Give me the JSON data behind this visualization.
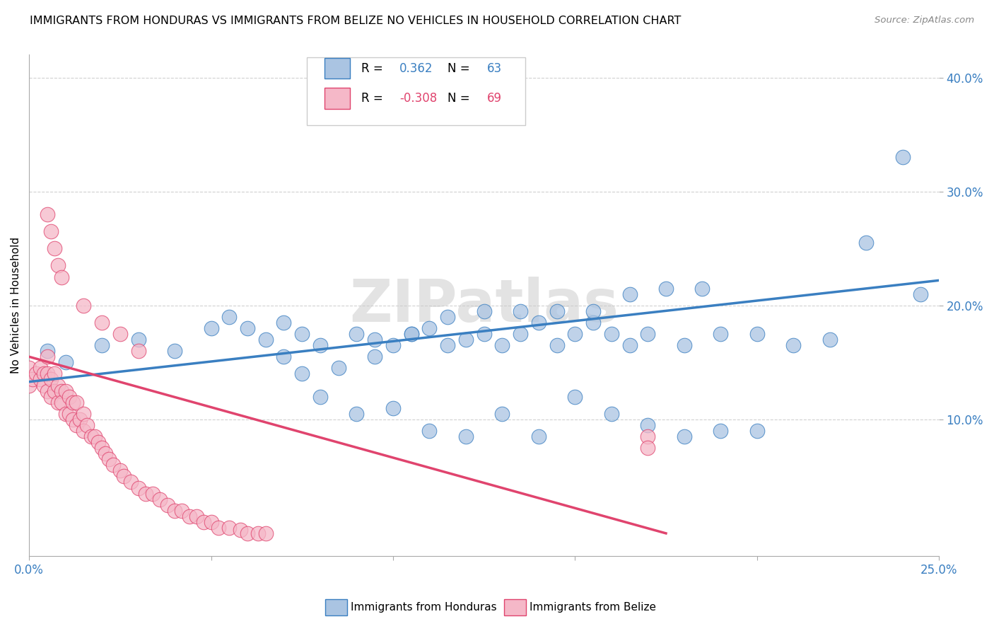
{
  "title": "IMMIGRANTS FROM HONDURAS VS IMMIGRANTS FROM BELIZE NO VEHICLES IN HOUSEHOLD CORRELATION CHART",
  "source": "Source: ZipAtlas.com",
  "ylabel": "No Vehicles in Household",
  "xlim": [
    0.0,
    0.25
  ],
  "ylim": [
    -0.02,
    0.42
  ],
  "ytick_vals": [
    0.1,
    0.2,
    0.3,
    0.4
  ],
  "ytick_labels": [
    "10.0%",
    "20.0%",
    "30.0%",
    "40.0%"
  ],
  "xtick_vals": [
    0.0,
    0.05,
    0.1,
    0.15,
    0.2,
    0.25
  ],
  "xtick_labels": [
    "0.0%",
    "",
    "",
    "",
    "",
    "25.0%"
  ],
  "legend_r_blue": "0.362",
  "legend_n_blue": "63",
  "legend_r_pink": "-0.308",
  "legend_n_pink": "69",
  "blue_color": "#aac4e2",
  "pink_color": "#f5b8c8",
  "blue_line_color": "#3a7fc1",
  "pink_line_color": "#e0446e",
  "watermark": "ZIPatlas",
  "blue_trend_start_y": 0.133,
  "blue_trend_end_y": 0.222,
  "pink_trend_start_y": 0.155,
  "pink_trend_end_x": 0.175,
  "blue_x": [
    0.005,
    0.01,
    0.02,
    0.03,
    0.04,
    0.05,
    0.055,
    0.06,
    0.065,
    0.07,
    0.075,
    0.08,
    0.09,
    0.095,
    0.1,
    0.105,
    0.11,
    0.115,
    0.12,
    0.125,
    0.13,
    0.135,
    0.14,
    0.145,
    0.15,
    0.155,
    0.16,
    0.165,
    0.17,
    0.18,
    0.19,
    0.2,
    0.21,
    0.22,
    0.23,
    0.24,
    0.245,
    0.08,
    0.09,
    0.1,
    0.11,
    0.12,
    0.13,
    0.14,
    0.15,
    0.16,
    0.17,
    0.18,
    0.19,
    0.2,
    0.07,
    0.075,
    0.085,
    0.095,
    0.105,
    0.115,
    0.125,
    0.135,
    0.145,
    0.155,
    0.165,
    0.175,
    0.185
  ],
  "blue_y": [
    0.16,
    0.15,
    0.165,
    0.17,
    0.16,
    0.18,
    0.19,
    0.18,
    0.17,
    0.185,
    0.175,
    0.165,
    0.175,
    0.17,
    0.165,
    0.175,
    0.18,
    0.165,
    0.17,
    0.175,
    0.165,
    0.175,
    0.185,
    0.165,
    0.175,
    0.185,
    0.175,
    0.165,
    0.175,
    0.165,
    0.175,
    0.175,
    0.165,
    0.17,
    0.255,
    0.33,
    0.21,
    0.12,
    0.105,
    0.11,
    0.09,
    0.085,
    0.105,
    0.085,
    0.12,
    0.105,
    0.095,
    0.085,
    0.09,
    0.09,
    0.155,
    0.14,
    0.145,
    0.155,
    0.175,
    0.19,
    0.195,
    0.195,
    0.195,
    0.195,
    0.21,
    0.215,
    0.215
  ],
  "pink_x": [
    0.0,
    0.0,
    0.001,
    0.002,
    0.003,
    0.003,
    0.004,
    0.004,
    0.005,
    0.005,
    0.005,
    0.006,
    0.006,
    0.007,
    0.007,
    0.008,
    0.008,
    0.009,
    0.009,
    0.01,
    0.01,
    0.011,
    0.011,
    0.012,
    0.012,
    0.013,
    0.013,
    0.014,
    0.015,
    0.015,
    0.016,
    0.017,
    0.018,
    0.019,
    0.02,
    0.021,
    0.022,
    0.023,
    0.025,
    0.026,
    0.028,
    0.03,
    0.032,
    0.034,
    0.036,
    0.038,
    0.04,
    0.042,
    0.044,
    0.046,
    0.048,
    0.05,
    0.052,
    0.055,
    0.058,
    0.06,
    0.063,
    0.065,
    0.17,
    0.17,
    0.005,
    0.006,
    0.007,
    0.008,
    0.009,
    0.015,
    0.02,
    0.025,
    0.03
  ],
  "pink_y": [
    0.145,
    0.13,
    0.135,
    0.14,
    0.135,
    0.145,
    0.14,
    0.13,
    0.155,
    0.14,
    0.125,
    0.135,
    0.12,
    0.14,
    0.125,
    0.13,
    0.115,
    0.125,
    0.115,
    0.125,
    0.105,
    0.12,
    0.105,
    0.115,
    0.1,
    0.115,
    0.095,
    0.1,
    0.105,
    0.09,
    0.095,
    0.085,
    0.085,
    0.08,
    0.075,
    0.07,
    0.065,
    0.06,
    0.055,
    0.05,
    0.045,
    0.04,
    0.035,
    0.035,
    0.03,
    0.025,
    0.02,
    0.02,
    0.015,
    0.015,
    0.01,
    0.01,
    0.005,
    0.005,
    0.003,
    0.0,
    0.0,
    0.0,
    0.085,
    0.075,
    0.28,
    0.265,
    0.25,
    0.235,
    0.225,
    0.2,
    0.185,
    0.175,
    0.16
  ]
}
